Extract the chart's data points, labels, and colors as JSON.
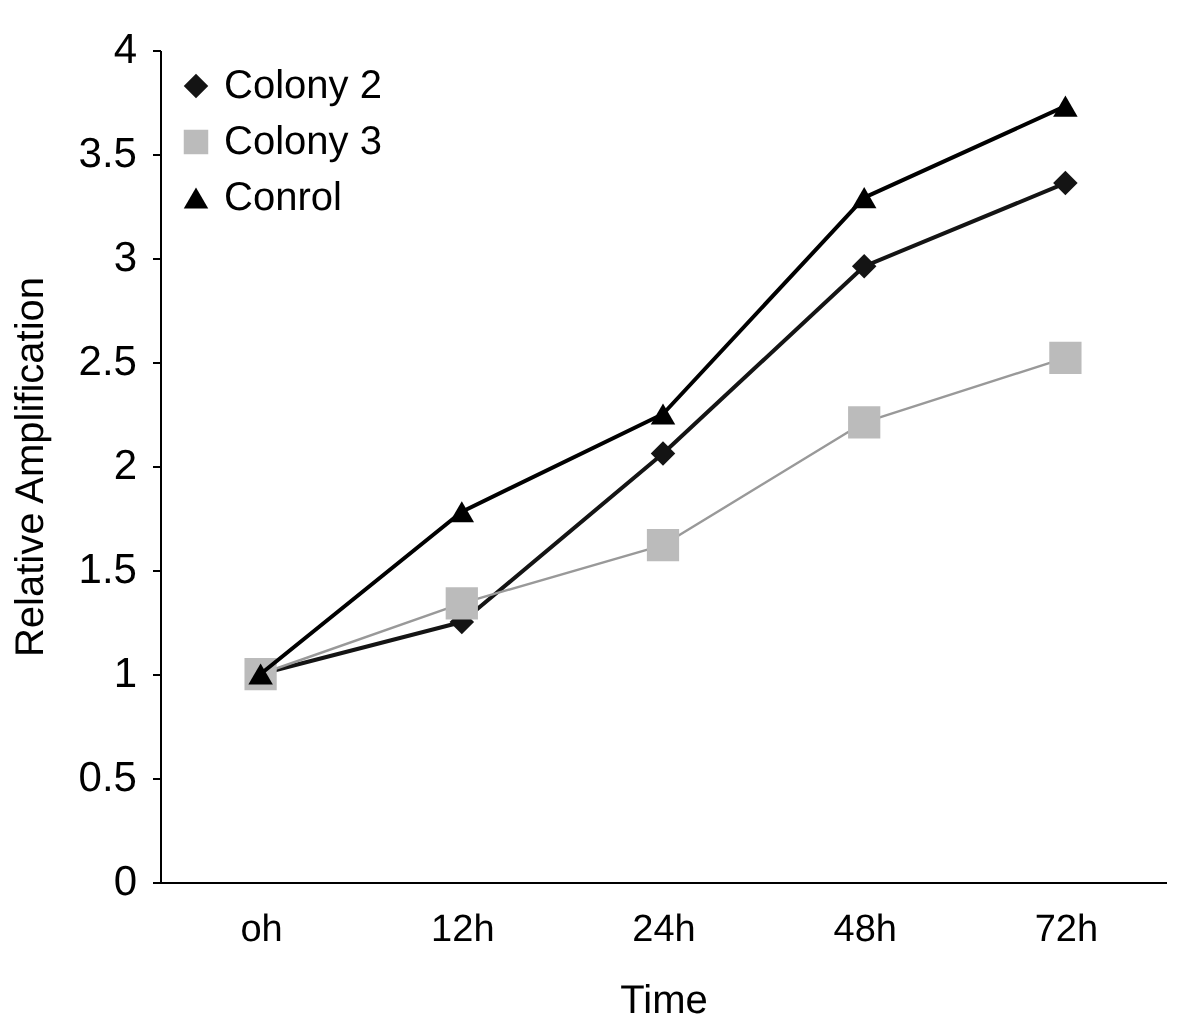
{
  "chart_data": {
    "type": "line",
    "xlabel": "Time",
    "ylabel": "Relative Amplification",
    "categories": [
      "oh",
      "12h",
      "24h",
      "48h",
      "72h"
    ],
    "series": [
      {
        "name": "Colony 2",
        "color": "#141414",
        "marker": "diamond",
        "values": [
          1,
          1.25,
          2.06,
          2.96,
          3.36
        ]
      },
      {
        "name": "Colony 3",
        "color": "#bbbbbb",
        "marker": "square",
        "values": [
          1,
          1.34,
          1.62,
          2.21,
          2.52
        ]
      },
      {
        "name": "Conrol",
        "color": "#000000",
        "marker": "triangle",
        "values": [
          1,
          1.78,
          2.25,
          3.29,
          3.73
        ]
      }
    ],
    "ylim": [
      0,
      4
    ],
    "yticks": [
      0,
      0.5,
      1,
      1.5,
      2,
      2.5,
      3,
      3.5,
      4
    ],
    "grid": false,
    "legend": "top left",
    "line_style": "solid"
  }
}
